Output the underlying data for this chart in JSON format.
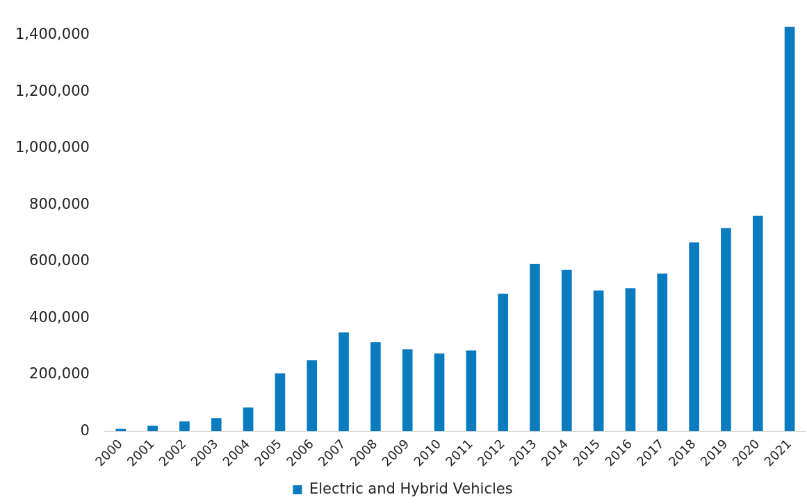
{
  "chart_data": {
    "type": "bar",
    "categories": [
      "2000",
      "2001",
      "2002",
      "2003",
      "2004",
      "2005",
      "2006",
      "2007",
      "2008",
      "2009",
      "2010",
      "2011",
      "2012",
      "2013",
      "2014",
      "2015",
      "2016",
      "2017",
      "2018",
      "2019",
      "2020",
      "2021"
    ],
    "series": [
      {
        "name": "Electric and Hybrid Vehicles",
        "color": "#0b7bc0",
        "values": [
          9000,
          20000,
          35000,
          47000,
          84000,
          205000,
          251000,
          350000,
          315000,
          290000,
          275000,
          286000,
          487000,
          592000,
          571000,
          498000,
          506000,
          558000,
          668000,
          719000,
          762000,
          1430000
        ]
      }
    ],
    "ylim": [
      0,
      1440000
    ],
    "yticks": [
      {
        "value": 0,
        "label": "0"
      },
      {
        "value": 200000,
        "label": "200,000"
      },
      {
        "value": 400000,
        "label": "400,000"
      },
      {
        "value": 600000,
        "label": "600,000"
      },
      {
        "value": 800000,
        "label": "800,000"
      },
      {
        "value": 1000000,
        "label": "1,000,000"
      },
      {
        "value": 1200000,
        "label": "1,200,000"
      },
      {
        "value": 1400000,
        "label": "1,400,000"
      }
    ],
    "grid": false,
    "legend": "bottom"
  }
}
